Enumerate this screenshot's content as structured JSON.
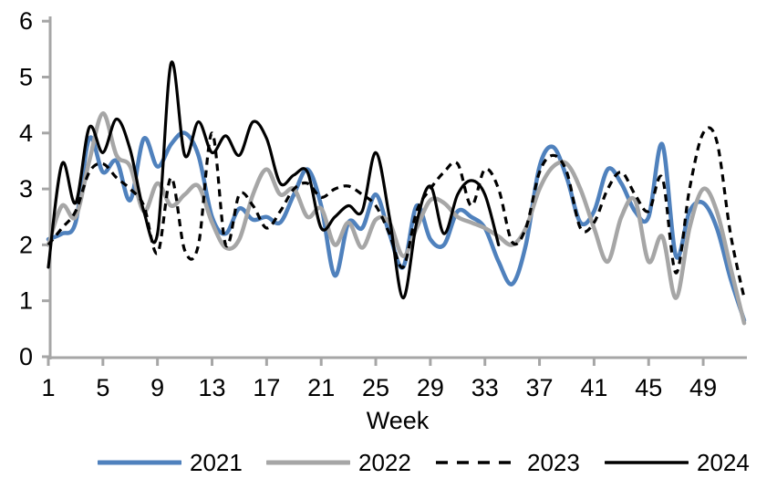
{
  "chart_data": {
    "type": "line",
    "title": "",
    "xlabel": "Week",
    "ylim": [
      0,
      6
    ],
    "xlim": [
      1,
      52
    ],
    "grid": false,
    "legend_position": "bottom",
    "axis_color": "#A6A6A6",
    "y_ticks": [
      0,
      1,
      2,
      3,
      4,
      5,
      6
    ],
    "x_ticks": [
      1,
      5,
      9,
      13,
      17,
      21,
      25,
      29,
      33,
      37,
      41,
      45,
      49
    ],
    "x_start": 1,
    "series": [
      {
        "name": "2021",
        "color": "#4F81BD",
        "style": "solid",
        "values": [
          2.1,
          2.2,
          2.4,
          3.9,
          3.3,
          3.5,
          2.8,
          3.9,
          3.4,
          3.8,
          4.0,
          3.6,
          2.5,
          2.2,
          2.65,
          2.45,
          2.5,
          2.4,
          2.9,
          3.35,
          2.7,
          1.45,
          2.4,
          2.3,
          2.9,
          2.2,
          1.6,
          2.7,
          2.1,
          2.0,
          2.6,
          2.5,
          2.3,
          1.7,
          1.3,
          2.0,
          3.4,
          3.75,
          3.2,
          2.4,
          2.6,
          3.35,
          3.1,
          2.6,
          2.5,
          3.8,
          1.8,
          2.6,
          2.75,
          2.3,
          1.4,
          0.65
        ]
      },
      {
        "name": "2022",
        "color": "#A6A6A6",
        "style": "solid",
        "values": [
          2.0,
          2.7,
          2.5,
          3.5,
          4.35,
          3.6,
          3.4,
          2.6,
          3.1,
          2.7,
          2.9,
          3.05,
          2.4,
          1.95,
          2.1,
          2.9,
          3.35,
          2.9,
          3.0,
          2.5,
          2.65,
          2.0,
          2.4,
          1.95,
          2.45,
          2.4,
          1.8,
          2.3,
          2.8,
          2.75,
          2.5,
          2.4,
          2.3,
          2.15,
          2.0,
          2.3,
          3.0,
          3.4,
          3.45,
          3.0,
          2.3,
          1.7,
          2.5,
          2.8,
          1.7,
          2.15,
          1.05,
          2.3,
          3.0,
          2.6,
          1.6,
          0.6
        ]
      },
      {
        "name": "2023",
        "color": "#000000",
        "style": "dashed",
        "values": [
          2.0,
          2.3,
          2.6,
          3.3,
          3.45,
          3.2,
          3.0,
          2.7,
          1.85,
          3.2,
          1.9,
          2.0,
          4.0,
          2.0,
          2.9,
          2.7,
          2.3,
          2.6,
          3.0,
          3.1,
          2.85,
          3.0,
          3.05,
          2.9,
          2.7,
          2.2,
          1.6,
          2.6,
          3.0,
          3.3,
          3.45,
          2.7,
          3.35,
          3.0,
          2.05,
          2.3,
          3.3,
          3.6,
          3.3,
          2.3,
          2.4,
          3.0,
          3.3,
          2.9,
          2.6,
          3.2,
          1.5,
          3.0,
          4.0,
          3.85,
          2.2,
          1.05
        ]
      },
      {
        "name": "2024",
        "color": "#000000",
        "style": "solid",
        "values": [
          1.6,
          3.45,
          2.75,
          4.1,
          3.65,
          4.25,
          3.7,
          2.6,
          2.2,
          5.25,
          3.6,
          4.2,
          3.65,
          3.95,
          3.6,
          4.2,
          3.9,
          3.1,
          3.25,
          3.3,
          2.3,
          2.5,
          2.7,
          2.6,
          3.65,
          2.5,
          1.05,
          2.4,
          3.05,
          2.2,
          2.9,
          3.15,
          2.9,
          2.0
        ]
      }
    ]
  }
}
